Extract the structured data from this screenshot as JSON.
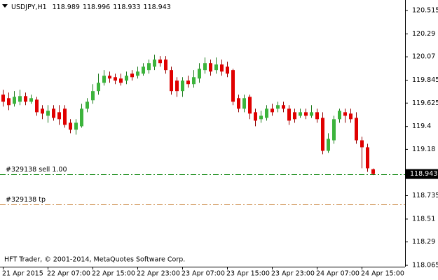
{
  "chart_data": {
    "type": "candlestick",
    "symbol": "USDJPY,H1",
    "footer": "HFT Trader, © 2001-2014, MetaQuotes Software Corp.",
    "categories": [
      "21 Apr 2015",
      null,
      null,
      null,
      null,
      null,
      null,
      null,
      "22 Apr 07:00",
      null,
      null,
      null,
      null,
      null,
      null,
      null,
      "22 Apr 15:00",
      null,
      null,
      null,
      null,
      null,
      null,
      null,
      "22 Apr 23:00",
      null,
      null,
      null,
      null,
      null,
      null,
      null,
      "23 Apr 07:00",
      null,
      null,
      null,
      null,
      null,
      null,
      null,
      "23 Apr 15:00",
      null,
      null,
      null,
      null,
      null,
      null,
      null,
      "23 Apr 23:00",
      null,
      null,
      null,
      null,
      null,
      null,
      null,
      "24 Apr 07:00",
      null,
      null,
      null,
      null,
      null,
      null,
      null,
      "24 Apr 15:00",
      null,
      null
    ],
    "open": [
      119.706,
      119.672,
      119.618,
      119.638,
      119.692,
      119.638,
      119.658,
      119.571,
      119.503,
      119.571,
      119.537,
      119.571,
      119.436,
      119.369,
      119.402,
      119.571,
      119.652,
      119.74,
      119.82,
      119.888,
      119.874,
      119.861,
      119.841,
      119.908,
      119.888,
      119.908,
      119.942,
      119.975,
      120.043,
      120.043,
      119.942,
      119.841,
      119.74,
      119.841,
      119.807,
      119.861,
      119.942,
      120.009,
      119.942,
      119.996,
      119.975,
      119.942,
      119.672,
      119.571,
      119.685,
      119.537,
      119.47,
      119.483,
      119.571,
      119.571,
      119.605,
      119.571,
      119.537,
      119.503,
      119.537,
      119.503,
      119.537,
      119.483,
      119.166,
      119.267,
      119.47,
      119.537,
      119.524,
      119.483,
      119.267,
      119.2,
      118.989
    ],
    "high": [
      119.753,
      119.726,
      119.74,
      119.753,
      119.726,
      119.706,
      119.685,
      119.605,
      119.605,
      119.605,
      119.605,
      119.605,
      119.47,
      119.47,
      119.618,
      119.672,
      119.807,
      119.908,
      119.942,
      119.928,
      119.908,
      119.908,
      119.928,
      119.942,
      119.975,
      120.009,
      120.043,
      120.09,
      120.077,
      120.077,
      119.975,
      119.874,
      119.874,
      119.888,
      119.942,
      120.009,
      120.063,
      120.043,
      120.063,
      120.043,
      120.023,
      119.955,
      119.706,
      119.706,
      119.706,
      119.571,
      119.551,
      119.605,
      119.618,
      119.638,
      119.638,
      119.605,
      119.571,
      119.571,
      119.571,
      119.605,
      119.571,
      119.537,
      119.335,
      119.503,
      119.571,
      119.571,
      119.571,
      119.537,
      119.301,
      119.234,
      118.996
    ],
    "low": [
      119.591,
      119.557,
      119.591,
      119.605,
      119.605,
      119.618,
      119.503,
      119.47,
      119.436,
      119.456,
      119.416,
      119.389,
      119.335,
      119.321,
      119.389,
      119.537,
      119.618,
      119.706,
      119.793,
      119.82,
      119.807,
      119.793,
      119.807,
      119.841,
      119.861,
      119.888,
      119.908,
      119.942,
      119.975,
      119.908,
      119.706,
      119.685,
      119.685,
      119.773,
      119.773,
      119.82,
      119.908,
      119.888,
      119.908,
      119.888,
      119.874,
      119.605,
      119.537,
      119.537,
      119.47,
      119.402,
      119.436,
      119.456,
      119.503,
      119.537,
      119.537,
      119.416,
      119.436,
      119.483,
      119.47,
      119.483,
      119.436,
      119.133,
      119.146,
      119.234,
      119.436,
      119.436,
      119.436,
      119.234,
      118.998,
      118.964,
      118.933
    ],
    "close": [
      119.638,
      119.605,
      119.685,
      119.692,
      119.638,
      119.672,
      119.537,
      119.524,
      119.551,
      119.483,
      119.47,
      119.416,
      119.369,
      119.436,
      119.571,
      119.638,
      119.74,
      119.82,
      119.888,
      119.861,
      119.841,
      119.82,
      119.888,
      119.874,
      119.928,
      119.975,
      120.009,
      120.043,
      120.009,
      119.942,
      119.74,
      119.74,
      119.841,
      119.807,
      119.874,
      119.955,
      120.009,
      119.928,
      119.996,
      119.928,
      119.908,
      119.638,
      119.571,
      119.672,
      119.524,
      119.456,
      119.503,
      119.571,
      119.537,
      119.605,
      119.571,
      119.456,
      119.47,
      119.537,
      119.503,
      119.537,
      119.47,
      119.166,
      119.281,
      119.47,
      119.551,
      119.503,
      119.47,
      119.267,
      119.2,
      118.998,
      118.943
    ],
    "up_color": "#3cb43c",
    "down_color": "#e00000",
    "ylim": [
      118.052,
      120.616
    ],
    "yticks": [
      120.515,
      120.29,
      120.07,
      119.845,
      119.625,
      119.4,
      119.18,
      118.735,
      118.51,
      118.29,
      118.065
    ],
    "orders": [
      {
        "label": "#329138 sell 1.00",
        "price": 118.943,
        "color": "#008000"
      },
      {
        "label": "#329138 tp",
        "price": 118.654,
        "color": "#c8843c"
      }
    ]
  }
}
